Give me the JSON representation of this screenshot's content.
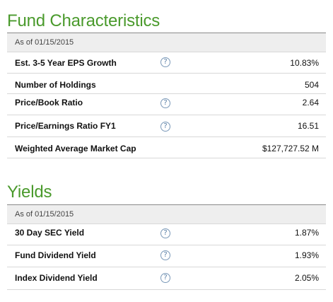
{
  "characteristics": {
    "title": "Fund Characteristics",
    "as_of": "As of 01/15/2015",
    "rows": [
      {
        "label": "Est. 3-5 Year EPS Growth",
        "value": "10.83%",
        "help_icon": "question-icon"
      },
      {
        "label": "Number of Holdings",
        "value": "504"
      },
      {
        "label": "Price/Book Ratio",
        "value": "2.64",
        "help_icon": "question-icon"
      },
      {
        "label": "Price/Earnings Ratio FY1",
        "value": "16.51",
        "help_icon": "question-icon"
      },
      {
        "label": "Weighted Average Market Cap",
        "value": "$127,727.52 M"
      }
    ]
  },
  "yields": {
    "title": "Yields",
    "as_of": "As of 01/15/2015",
    "rows": [
      {
        "label": "30 Day SEC Yield",
        "value": "1.87%",
        "help_icon": "question-icon"
      },
      {
        "label": "Fund Dividend Yield",
        "value": "1.93%",
        "help_icon": "question-icon"
      },
      {
        "label": "Index Dividend Yield",
        "value": "2.05%",
        "help_icon": "question-icon"
      }
    ]
  },
  "help_glyph": "?",
  "colors": {
    "title_green": "#4a9a2c",
    "header_gray": "#eeeeee",
    "help_blue": "#5a7fa6"
  }
}
